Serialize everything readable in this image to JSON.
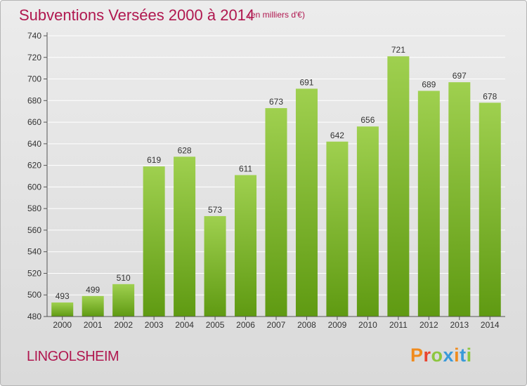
{
  "header": {
    "title": "Subventions Versées 2000 à 2014",
    "subtitle": "(en milliers d'€)"
  },
  "footer": {
    "commune": "LINGOLSHEIM",
    "brand": "Proxiti"
  },
  "colors": {
    "title": "#b0174f",
    "bar_light": "#9fd04f",
    "bar_dark": "#5f9a12",
    "grid": "#ffffff",
    "axis": "#555555",
    "text": "#333333"
  },
  "chart_data": {
    "type": "bar",
    "title": "Subventions Versées 2000 à 2014",
    "subtitle": "(en milliers d'€)",
    "xlabel": "",
    "ylabel": "",
    "categories": [
      "2000",
      "2001",
      "2002",
      "2003",
      "2004",
      "2005",
      "2006",
      "2007",
      "2008",
      "2009",
      "2010",
      "2011",
      "2012",
      "2013",
      "2014"
    ],
    "values": [
      493,
      499,
      510,
      619,
      628,
      573,
      611,
      673,
      691,
      642,
      656,
      721,
      689,
      697,
      678
    ],
    "ylim": [
      480,
      740
    ],
    "yticks": [
      480,
      500,
      520,
      540,
      560,
      580,
      600,
      620,
      640,
      660,
      680,
      700,
      720,
      740
    ],
    "grid": true,
    "legend": "none"
  }
}
